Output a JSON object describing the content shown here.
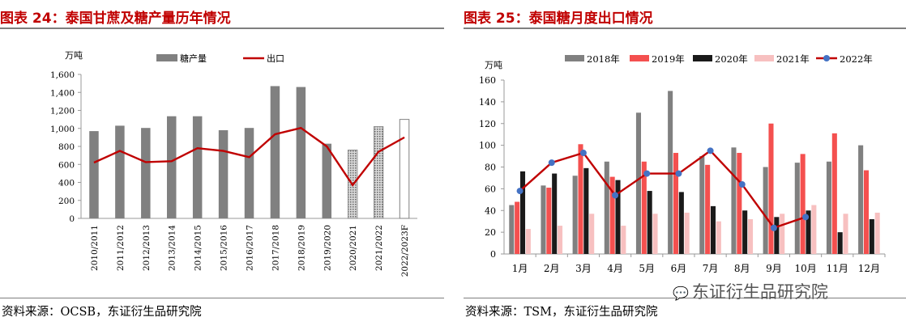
{
  "left": {
    "title": "图表 24：泰国甘蔗及糖产量历年情况",
    "source": "资料来源：OCSB，东证衍生品研究院"
  },
  "right": {
    "title": "图表 25：泰国糖月度出口情况",
    "source": "资料来源：TSM，东证衍生品研究院"
  },
  "watermark": {
    "text": "东证衍生品研究院",
    "icon": "wechat-icon"
  },
  "colors": {
    "title": "#c00000",
    "gray": "#808080",
    "line": "#c00000",
    "s2018": "#808080",
    "s2019": "#f4504f",
    "s2020": "#1a1a1a",
    "s2021": "#f7c0c0",
    "s2022": "#4472c4"
  },
  "chart_data": [
    {
      "type": "bar",
      "unit": "万吨",
      "categories": [
        "2010/2011",
        "2011/2012",
        "2012/2013",
        "2013/2014",
        "2014/2015",
        "2015/2016",
        "2016/2017",
        "2017/2018",
        "2018/2019",
        "2019/2020",
        "2020/2021",
        "2021/2022",
        "2022/2023F"
      ],
      "ylim": [
        0,
        1600
      ],
      "yticks": [
        0,
        200,
        400,
        600,
        800,
        1000,
        1200,
        1400,
        1600
      ],
      "ytick_labels": [
        "0",
        "200",
        "400",
        "600",
        "800",
        "1,000",
        "1,200",
        "1,400",
        "1,600"
      ],
      "series": [
        {
          "name": "糖产量",
          "type": "bar",
          "values": [
            970,
            1030,
            1005,
            1135,
            1135,
            980,
            1005,
            1470,
            1460,
            830,
            760,
            1020,
            1100
          ],
          "styles": [
            "solid",
            "solid",
            "solid",
            "solid",
            "solid",
            "solid",
            "solid",
            "solid",
            "solid",
            "solid",
            "dotted",
            "dotted",
            "hollow"
          ]
        },
        {
          "name": "出口",
          "type": "line",
          "values": [
            620,
            750,
            625,
            635,
            780,
            750,
            680,
            935,
            1005,
            800,
            370,
            740,
            900
          ]
        }
      ]
    },
    {
      "type": "bar",
      "unit": "万吨",
      "categories": [
        "1月",
        "2月",
        "3月",
        "4月",
        "5月",
        "6月",
        "7月",
        "8月",
        "9月",
        "10月",
        "11月",
        "12月"
      ],
      "ylim": [
        0,
        160
      ],
      "yticks": [
        0,
        20,
        40,
        60,
        80,
        100,
        120,
        140,
        160
      ],
      "ytick_labels": [
        "0",
        "20",
        "40",
        "60",
        "80",
        "100",
        "120",
        "140",
        "160"
      ],
      "series": [
        {
          "name": "2018年",
          "type": "bar",
          "values": [
            45,
            63,
            72,
            85,
            130,
            150,
            90,
            98,
            80,
            84,
            85,
            100
          ]
        },
        {
          "name": "2019年",
          "type": "bar",
          "values": [
            48,
            61,
            101,
            71,
            85,
            93,
            82,
            93,
            120,
            92,
            111,
            77
          ]
        },
        {
          "name": "2020年",
          "type": "bar",
          "values": [
            76,
            74,
            79,
            68,
            58,
            57,
            44,
            40,
            34,
            40,
            20,
            32
          ]
        },
        {
          "name": "2021年",
          "type": "bar",
          "values": [
            23,
            26,
            37,
            26,
            37,
            38,
            30,
            32,
            37,
            45,
            37,
            38
          ]
        },
        {
          "name": "2022年",
          "type": "line",
          "values": [
            58,
            84,
            93,
            54,
            74,
            74,
            95,
            64,
            24,
            34,
            null,
            null
          ]
        }
      ]
    }
  ]
}
